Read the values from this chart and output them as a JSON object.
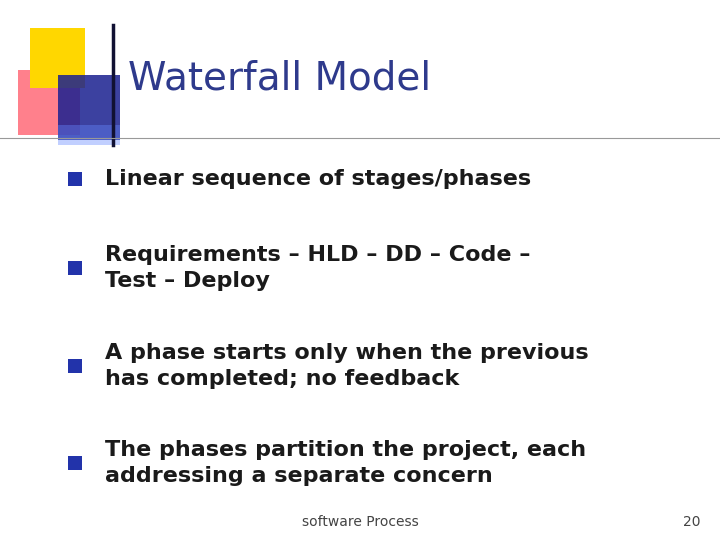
{
  "title": "Waterfall Model",
  "title_color": "#2E3A8C",
  "title_fontsize": 28,
  "bullet_points": [
    "Linear sequence of stages/phases",
    "Requirements – HLD – DD – Code –\nTest – Deploy",
    "A phase starts only when the previous\nhas completed; no feedback",
    "The phases partition the project, each\naddressing a separate concern"
  ],
  "bullet_color": "#1A1A1A",
  "bullet_fontsize": 16,
  "bullet_marker_color": "#2233AA",
  "footer_text": "software Process",
  "footer_page": "20",
  "footer_fontsize": 10,
  "background_color": "#FFFFFF",
  "accent_yellow": "#FFD700",
  "accent_red": "#FF5566",
  "accent_blue_dark": "#1A2090",
  "accent_blue_light": "#6688FF"
}
